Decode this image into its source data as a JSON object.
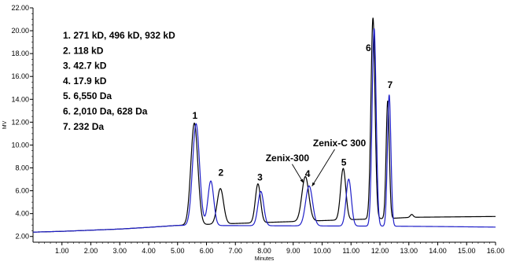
{
  "chart_data": {
    "type": "line",
    "xlabel": "Minutes",
    "ylabel": "MV",
    "xlim": [
      0.0,
      16.0
    ],
    "ylim": [
      1.5,
      22.0
    ],
    "x_ticks": [
      "1.00",
      "2.00",
      "3.00",
      "4.00",
      "5.00",
      "6.00",
      "7.00",
      "8.00",
      "9.00",
      "10.00",
      "11.00",
      "12.00",
      "13.00",
      "14.00",
      "15.00",
      "16.00"
    ],
    "y_ticks": [
      "2.00",
      "4.00",
      "6.00",
      "8.00",
      "10.00",
      "12.00",
      "14.00",
      "16.00",
      "18.00",
      "20.00",
      "22.00"
    ],
    "grid": false,
    "legend_items": [
      "1.   271 kD, 496 kD, 932 kD",
      "2.   118 kD",
      "3.   42.7 kD",
      "4.   17.9 kD",
      "5.   6,550 Da",
      "6.   2,010 Da, 628 Da",
      "7.   232 Da"
    ],
    "peak_labels": [
      {
        "text": "1",
        "x": 5.6,
        "y": 12.3
      },
      {
        "text": "2",
        "x": 6.5,
        "y": 7.3
      },
      {
        "text": "3",
        "x": 7.85,
        "y": 6.9
      },
      {
        "text": "4",
        "x": 9.5,
        "y": 7.2
      },
      {
        "text": "5",
        "x": 10.75,
        "y": 8.2
      },
      {
        "text": "6",
        "x": 11.6,
        "y": 18.2
      },
      {
        "text": "7",
        "x": 12.35,
        "y": 15.0
      }
    ],
    "annotations": [
      {
        "text": "Zenix-300",
        "x": 8.8,
        "y": 8.6,
        "arrow_to": [
          9.35,
          6.7
        ]
      },
      {
        "text": "Zenix-C 300",
        "x": 10.6,
        "y": 9.9,
        "arrow_to": [
          9.65,
          6.4
        ]
      }
    ],
    "series": [
      {
        "color": "#000000",
        "baseline": [
          [
            0.0,
            2.38
          ],
          [
            1.0,
            2.45
          ],
          [
            2.0,
            2.55
          ],
          [
            3.0,
            2.65
          ],
          [
            4.0,
            2.8
          ],
          [
            5.0,
            2.97
          ],
          [
            12.5,
            3.6
          ],
          [
            13.1,
            3.68
          ],
          [
            16.0,
            3.75
          ]
        ],
        "peaks": [
          {
            "x": 5.58,
            "h": 8.9,
            "w": 0.12
          },
          {
            "x": 6.48,
            "h": 3.1,
            "w": 0.11
          },
          {
            "x": 7.78,
            "h": 3.4,
            "w": 0.09
          },
          {
            "x": 9.42,
            "h": 3.9,
            "w": 0.12
          },
          {
            "x": 10.73,
            "h": 4.5,
            "w": 0.09
          },
          {
            "x": 11.76,
            "h": 17.6,
            "w": 0.07
          },
          {
            "x": 12.27,
            "h": 10.3,
            "w": 0.055
          },
          {
            "x": 13.1,
            "h": 0.25,
            "w": 0.05
          }
        ]
      },
      {
        "color": "#1f1fc8",
        "baseline": [
          [
            0.0,
            2.38
          ],
          [
            1.0,
            2.45
          ],
          [
            2.0,
            2.55
          ],
          [
            3.0,
            2.65
          ],
          [
            4.0,
            2.8
          ],
          [
            5.0,
            2.97
          ],
          [
            12.5,
            2.9
          ],
          [
            14.0,
            2.87
          ],
          [
            16.0,
            2.82
          ]
        ],
        "peaks": [
          {
            "x": 5.64,
            "h": 8.9,
            "w": 0.12
          },
          {
            "x": 6.15,
            "h": 3.9,
            "w": 0.1
          },
          {
            "x": 7.88,
            "h": 3.0,
            "w": 0.1
          },
          {
            "x": 9.55,
            "h": 3.5,
            "w": 0.12
          },
          {
            "x": 10.92,
            "h": 4.1,
            "w": 0.09
          },
          {
            "x": 11.8,
            "h": 17.3,
            "w": 0.07
          },
          {
            "x": 12.32,
            "h": 11.5,
            "w": 0.06
          }
        ]
      }
    ]
  }
}
